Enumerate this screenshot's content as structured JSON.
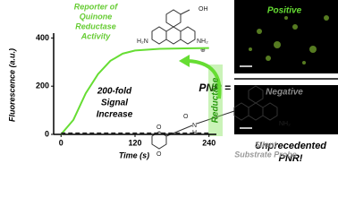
{
  "chart_data": {
    "type": "line",
    "xlabel": "Time (s)",
    "ylabel": "Fluorescence (a.u.)",
    "x": [
      0,
      20,
      40,
      60,
      80,
      100,
      120,
      160,
      200,
      240
    ],
    "series": [
      {
        "color": "#66dd33",
        "values": [
          0,
          60,
          170,
          250,
          305,
          335,
          348,
          355,
          357,
          358
        ],
        "dash": false
      },
      {
        "color": "#222222",
        "values": [
          4,
          4,
          4,
          4,
          4,
          4,
          4,
          4,
          4,
          4
        ],
        "dash": true
      }
    ],
    "xlim": [
      -12,
      252
    ],
    "ylim": [
      0,
      420
    ],
    "xticks": [
      0,
      120,
      240
    ],
    "yticks": [
      0,
      200,
      400
    ],
    "annotations": {
      "reporter": [
        "Reporter of",
        "Quinone",
        "Reductase",
        "Activity"
      ],
      "increase": [
        "200-fold",
        "Signal",
        "Increase"
      ],
      "enzyme": "Reductase"
    }
  },
  "graphic": {
    "probe": [
      "Silent",
      "Substrate Probe"
    ],
    "pnr_label": "PNR =",
    "positive": "Positive",
    "negative": "Negative",
    "conclusion": [
      "Unprecedented",
      "PNR!"
    ],
    "structure_labels": {
      "oh": "OH",
      "h2n_top": "H₂N",
      "nh2_top": "NH₂",
      "plus": "⊕",
      "nh2_probe": "NH₂",
      "o1": "O",
      "o2": "O",
      "nh": "N",
      "h": "H",
      "o3": "O"
    }
  }
}
